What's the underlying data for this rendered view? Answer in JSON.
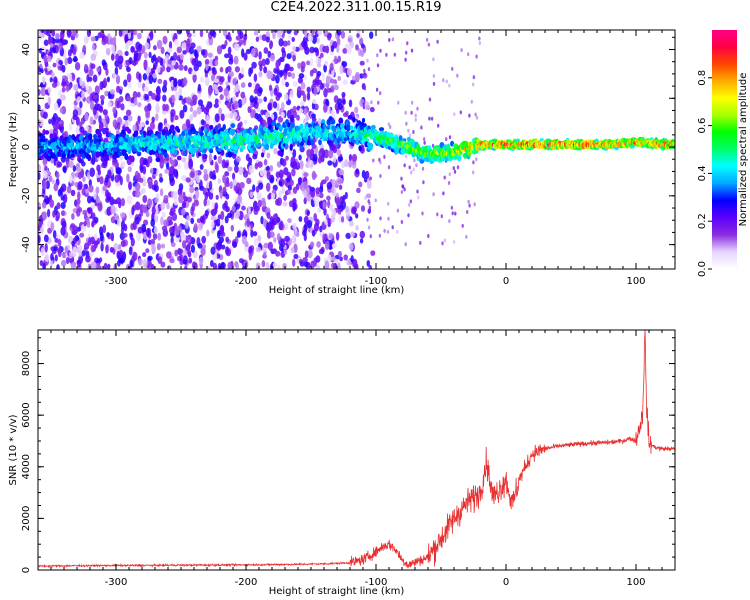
{
  "figure": {
    "title": "C2E4.2022.311.00.15.R19"
  },
  "chart_data": [
    {
      "type": "heatmap",
      "xlabel": "Height of straight line (km)",
      "ylabel": "Frequency (Hz)",
      "xlim": [
        -360,
        130
      ],
      "ylim": [
        -50,
        48
      ],
      "xticks": [
        -300,
        -200,
        -100,
        0,
        100
      ],
      "yticks": [
        -40,
        -20,
        0,
        20,
        40
      ],
      "colorbar": {
        "label": "Normalized spectral amplitude",
        "range": [
          0.0,
          1.0
        ],
        "ticks": [
          0.0,
          0.2,
          0.4,
          0.6,
          0.8
        ],
        "colormap": [
          "#ffffff",
          "#e6d2ff",
          "#8a2be2",
          "#5a00ff",
          "#0000ff",
          "#00aaff",
          "#00ffff",
          "#00ff66",
          "#00ff00",
          "#aaff00",
          "#ffff00",
          "#ffaa00",
          "#ff4400",
          "#ff0044",
          "#ff0088"
        ]
      },
      "ridge": {
        "x": [
          -360,
          -300,
          -250,
          -200,
          -150,
          -120,
          -100,
          -80,
          -60,
          -40,
          -20,
          0,
          40,
          80,
          100,
          130
        ],
        "y": [
          0,
          1,
          2,
          3,
          6,
          6,
          4,
          1,
          -3,
          -2,
          1,
          1,
          1,
          1,
          2,
          1
        ],
        "peak_amplitude": [
          0.4,
          0.45,
          0.5,
          0.55,
          0.5,
          0.45,
          0.6,
          0.65,
          0.7,
          0.75,
          0.9,
          0.95,
          0.95,
          0.92,
          0.9,
          0.9
        ]
      }
    },
    {
      "type": "line",
      "xlabel": "Height of straight line (km)",
      "ylabel": "SNR (10 * v/v)",
      "xlim": [
        -360,
        130
      ],
      "ylim": [
        0,
        9300
      ],
      "xticks": [
        -300,
        -200,
        -100,
        0,
        100
      ],
      "yticks": [
        0,
        2000,
        4000,
        6000,
        8000
      ],
      "color": "#e83030",
      "series": [
        {
          "x": [
            -360,
            -320,
            -280,
            -240,
            -200,
            -160,
            -140,
            -120,
            -110,
            -100,
            -95,
            -90,
            -85,
            -80,
            -75,
            -70,
            -60,
            -50,
            -40,
            -30,
            -20,
            -15,
            -10,
            0,
            5,
            10,
            20,
            30,
            40,
            60,
            80,
            90,
            95,
            100,
            105,
            107,
            108,
            110,
            115,
            120,
            130
          ],
          "y": [
            150,
            170,
            180,
            190,
            200,
            220,
            240,
            280,
            400,
            700,
            900,
            1000,
            800,
            400,
            200,
            300,
            500,
            1200,
            2000,
            2600,
            3000,
            4200,
            2800,
            3500,
            2500,
            3500,
            4500,
            4700,
            4800,
            4900,
            4950,
            5000,
            5100,
            5000,
            6000,
            9200,
            6500,
            4900,
            4750,
            4700,
            4700
          ]
        }
      ]
    }
  ]
}
